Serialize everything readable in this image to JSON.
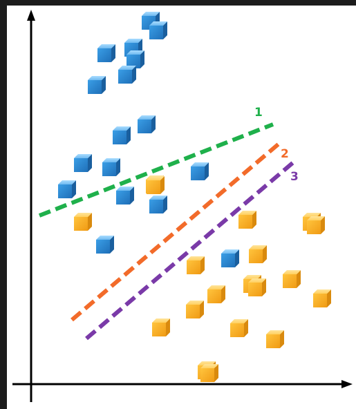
{
  "lines": [
    {
      "label": "1",
      "color": "#1fb04b"
    },
    {
      "label": "2",
      "color": "#f26b2a"
    },
    {
      "label": "3",
      "color": "#7a3aa8"
    }
  ],
  "colors": {
    "blue_cube": "#2f8fd8",
    "orange_cube": "#f7b733",
    "axis": "#000000",
    "background": "#ffffff",
    "border": "#1c1c1c"
  },
  "counts": {
    "blue_cubes": 17,
    "orange_cubes": 19
  }
}
